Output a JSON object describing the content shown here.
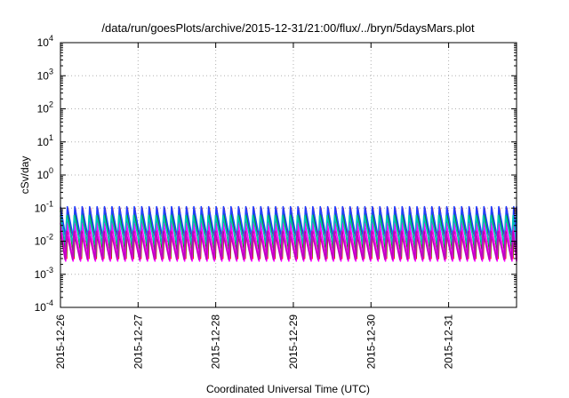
{
  "chart_data": {
    "type": "line",
    "title": "/data/run/goesPlots/archive/2015-12-31/21:00/flux/../bryn/5daysMars.plot",
    "xlabel": "Coordinated Universal Time (UTC)",
    "ylabel": "cSv/day",
    "y_scale": "log",
    "ylim": [
      0.0001,
      10000
    ],
    "y_ticks": [
      {
        "base": "10",
        "exp": "-4",
        "value": 0.0001
      },
      {
        "base": "10",
        "exp": "-3",
        "value": 0.001
      },
      {
        "base": "10",
        "exp": "-2",
        "value": 0.01
      },
      {
        "base": "10",
        "exp": "-1",
        "value": 0.1
      },
      {
        "base": "10",
        "exp": "0",
        "value": 1
      },
      {
        "base": "10",
        "exp": "1",
        "value": 10
      },
      {
        "base": "10",
        "exp": "2",
        "value": 100
      },
      {
        "base": "10",
        "exp": "3",
        "value": 1000
      },
      {
        "base": "10",
        "exp": "4",
        "value": 10000
      }
    ],
    "xlim": [
      "2015-12-26",
      "2015-12-31 21:00"
    ],
    "x_ticks": [
      "2015-12-26",
      "2015-12-27",
      "2015-12-28",
      "2015-12-29",
      "2015-12-30",
      "2015-12-31"
    ],
    "grid": true,
    "sawtooth_period_hours": 2.3,
    "series": [
      {
        "color": "#ff0000",
        "peak": 0.1,
        "trough": 0.003
      },
      {
        "color": "#00a000",
        "peak": 0.085,
        "trough": 0.0035
      },
      {
        "color": "#2040ff",
        "peak": 0.11,
        "trough": 0.012
      },
      {
        "color": "#ff00ff",
        "peak": 0.035,
        "trough": 0.0025
      },
      {
        "color": "#00c0c0",
        "peak": 0.06,
        "trough": 0.008
      },
      {
        "color": "#c000c0",
        "peak": 0.02,
        "trough": 0.0028
      }
    ]
  }
}
